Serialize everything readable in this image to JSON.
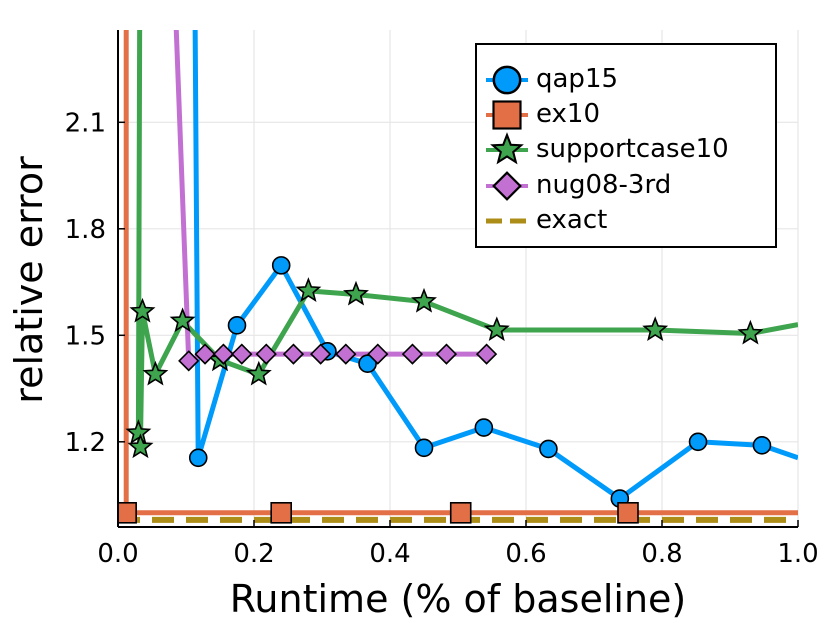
{
  "chart_data": {
    "type": "line",
    "title": "",
    "xlabel": "Runtime (% of baseline)",
    "ylabel": "relative error",
    "xlim": [
      0.0,
      1.0
    ],
    "ylim": [
      0.96,
      2.36
    ],
    "grid": true,
    "legend_position": "top-right",
    "xticks": [
      0.0,
      0.2,
      0.4,
      0.6,
      0.8,
      1.0
    ],
    "xtick_labels": [
      "0.0",
      "0.2",
      "0.4",
      "0.6",
      "0.8",
      "1.0"
    ],
    "yticks": [
      1.2,
      1.5,
      1.8,
      2.1
    ],
    "ytick_labels": [
      "1.2",
      "1.5",
      "1.8",
      "2.1"
    ],
    "series": [
      {
        "name": "qap15",
        "color": "#009AFA",
        "marker": "circle",
        "dashed": false,
        "x": [
          0.113,
          0.118,
          0.175,
          0.24,
          0.308,
          0.367,
          0.45,
          0.538,
          0.633,
          0.738,
          0.853,
          0.947,
          1.0
        ],
        "y": [
          2.5,
          1.155,
          1.528,
          1.697,
          1.455,
          1.42,
          1.183,
          1.24,
          1.18,
          1.04,
          1.2,
          1.19,
          1.155
        ]
      },
      {
        "name": "ex10",
        "color": "#E36F47",
        "marker": "square",
        "dashed": false,
        "x": [
          0.012,
          0.012,
          0.24,
          0.504,
          0.75,
          1.0
        ],
        "y": [
          2.5,
          1.0,
          1.0,
          1.0,
          1.0,
          1.0
        ]
      },
      {
        "name": "supportcase10",
        "color": "#3EA44E",
        "marker": "star",
        "dashed": false,
        "x": [
          0.032,
          0.03,
          0.033,
          0.036,
          0.055,
          0.095,
          0.15,
          0.207,
          0.28,
          0.35,
          0.45,
          0.557,
          0.79,
          0.93,
          1.0
        ],
        "y": [
          2.5,
          1.225,
          1.185,
          1.567,
          1.39,
          1.54,
          1.43,
          1.39,
          1.625,
          1.615,
          1.595,
          1.515,
          1.515,
          1.505,
          1.53
        ]
      },
      {
        "name": "nug08-3rd",
        "color": "#C271D2",
        "marker": "diamond",
        "dashed": false,
        "x": [
          0.083,
          0.104,
          0.128,
          0.155,
          0.182,
          0.218,
          0.258,
          0.298,
          0.335,
          0.382,
          0.433,
          0.483,
          0.542
        ],
        "y": [
          2.5,
          1.428,
          1.447,
          1.447,
          1.447,
          1.447,
          1.447,
          1.447,
          1.447,
          1.447,
          1.447,
          1.447,
          1.447
        ]
      },
      {
        "name": "exact",
        "color": "#AC8D18",
        "marker": "none",
        "dashed": true,
        "x": [
          0.0,
          1.0
        ],
        "y": [
          0.98,
          0.98
        ]
      }
    ],
    "markers": {
      "qap15": {
        "x": [
          0.118,
          0.175,
          0.24,
          0.308,
          0.367,
          0.45,
          0.538,
          0.633,
          0.738,
          0.853,
          0.947
        ],
        "y": [
          1.155,
          1.528,
          1.697,
          1.455,
          1.42,
          1.183,
          1.24,
          1.18,
          1.04,
          1.2,
          1.19
        ]
      },
      "ex10": {
        "x": [
          0.012,
          0.24,
          0.504,
          0.75
        ],
        "y": [
          1.0,
          1.0,
          1.0,
          1.0
        ]
      },
      "supportcase10": {
        "x": [
          0.03,
          0.033,
          0.036,
          0.055,
          0.095,
          0.15,
          0.207,
          0.28,
          0.35,
          0.45,
          0.557,
          0.79,
          0.93
        ],
        "y": [
          1.225,
          1.185,
          1.567,
          1.39,
          1.54,
          1.43,
          1.39,
          1.625,
          1.615,
          1.595,
          1.515,
          1.515,
          1.505
        ]
      },
      "nug08-3rd": {
        "x": [
          0.104,
          0.128,
          0.155,
          0.182,
          0.218,
          0.258,
          0.298,
          0.335,
          0.382,
          0.433,
          0.483,
          0.542
        ],
        "y": [
          1.428,
          1.447,
          1.447,
          1.447,
          1.447,
          1.447,
          1.447,
          1.447,
          1.447,
          1.447,
          1.447,
          1.447
        ]
      }
    }
  }
}
